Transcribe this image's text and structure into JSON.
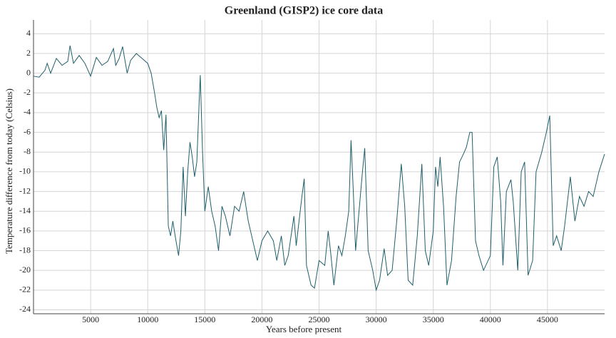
{
  "chart_data": {
    "type": "line",
    "title": "Greenland (GISP2) ice core data",
    "x_label": "Years before present",
    "y_label": "Temperature difference from today (Celsius)",
    "x": [
      0,
      500,
      1000,
      1200,
      1500,
      2000,
      2500,
      3000,
      3200,
      3500,
      4000,
      4500,
      5000,
      5500,
      6000,
      6500,
      7000,
      7200,
      7500,
      7800,
      8200,
      8500,
      9000,
      9500,
      10000,
      10300,
      10600,
      10800,
      11000,
      11200,
      11400,
      11600,
      11800,
      12000,
      12200,
      12400,
      12700,
      12900,
      13100,
      13300,
      13500,
      13700,
      13900,
      14100,
      14300,
      14500,
      14600,
      14800,
      15000,
      15300,
      15600,
      15900,
      16200,
      16500,
      16800,
      17200,
      17600,
      18000,
      18400,
      18800,
      19200,
      19600,
      20000,
      20500,
      21000,
      21300,
      21700,
      22000,
      22300,
      22800,
      23000,
      23500,
      23700,
      23900,
      24300,
      24600,
      25000,
      25500,
      25800,
      26000,
      26300,
      26700,
      27000,
      27300,
      27600,
      27800,
      28000,
      28200,
      28500,
      28800,
      29000,
      29300,
      29700,
      30000,
      30300,
      30700,
      31000,
      31400,
      31800,
      32200,
      32500,
      32800,
      33200,
      33600,
      34000,
      34300,
      34600,
      35000,
      35200,
      35400,
      35600,
      35900,
      36200,
      36600,
      37000,
      37300,
      37600,
      37900,
      38200,
      38400,
      38700,
      39000,
      39400,
      40000,
      40300,
      40600,
      40900,
      41100,
      41400,
      41800,
      42000,
      42400,
      42700,
      43000,
      43300,
      43700,
      44000,
      44500,
      44900,
      45200,
      45500,
      45800,
      46200,
      46500,
      47000,
      47400,
      47800,
      48200,
      48600,
      49000,
      49500,
      50000
    ],
    "series": [
      {
        "name": "GISP2",
        "color": "#1f5f6b",
        "values": [
          -0.3,
          -0.4,
          0.3,
          1.0,
          0.0,
          1.5,
          0.8,
          1.2,
          2.8,
          1.0,
          1.8,
          1.0,
          -0.3,
          1.6,
          0.8,
          1.2,
          2.5,
          0.8,
          1.5,
          2.7,
          0.0,
          1.3,
          2.0,
          1.5,
          1.0,
          0.0,
          -2,
          -3.5,
          -4.5,
          -3.8,
          -7.8,
          -4.2,
          -15.5,
          -16.5,
          -15,
          -16.5,
          -18.5,
          -16,
          -9.5,
          -14.5,
          -10,
          -7,
          -8.5,
          -10.5,
          -9,
          -3,
          -0.2,
          -8,
          -14,
          -11.5,
          -14,
          -15.5,
          -18,
          -13.5,
          -14.5,
          -16.5,
          -13.5,
          -14,
          -12,
          -15,
          -17,
          -19,
          -17,
          -16,
          -17,
          -19,
          -16.5,
          -19.5,
          -18.5,
          -14.5,
          -17.5,
          -12.5,
          -10.7,
          -19.5,
          -21.5,
          -21.8,
          -19,
          -19.5,
          -16,
          -18,
          -21.5,
          -17.5,
          -18.5,
          -16.5,
          -14,
          -6.8,
          -12,
          -18,
          -14,
          -10,
          -7.6,
          -18,
          -20,
          -22,
          -21,
          -17.8,
          -20.5,
          -20,
          -15,
          -9.2,
          -13.5,
          -21,
          -21.5,
          -16.5,
          -9.2,
          -18,
          -19.5,
          -16,
          -9.5,
          -11.5,
          -8.5,
          -13.5,
          -21.5,
          -19,
          -12.5,
          -9,
          -8.3,
          -7.5,
          -6,
          -6,
          -17,
          -18.5,
          -20,
          -18.5,
          -9.5,
          -8.5,
          -13,
          -19.5,
          -12,
          -10.8,
          -13,
          -20,
          -10,
          -9,
          -20.5,
          -19,
          -10,
          -8,
          -6,
          -4.3,
          -17.5,
          -16.5,
          -18,
          -15.5,
          -10.5,
          -15,
          -12.5,
          -13.5,
          -12,
          -12.5,
          -10,
          -8.2
        ]
      }
    ],
    "xlim": [
      0,
      50000
    ],
    "ylim": [
      -24.4,
      5.4
    ],
    "xticks": [
      5000,
      10000,
      15000,
      20000,
      25000,
      30000,
      35000,
      40000,
      45000
    ],
    "yticks": [
      -24,
      -22,
      -20,
      -18,
      -16,
      -14,
      -12,
      -10,
      -8,
      -6,
      -4,
      -2,
      0,
      2,
      4
    ],
    "grid": true
  }
}
